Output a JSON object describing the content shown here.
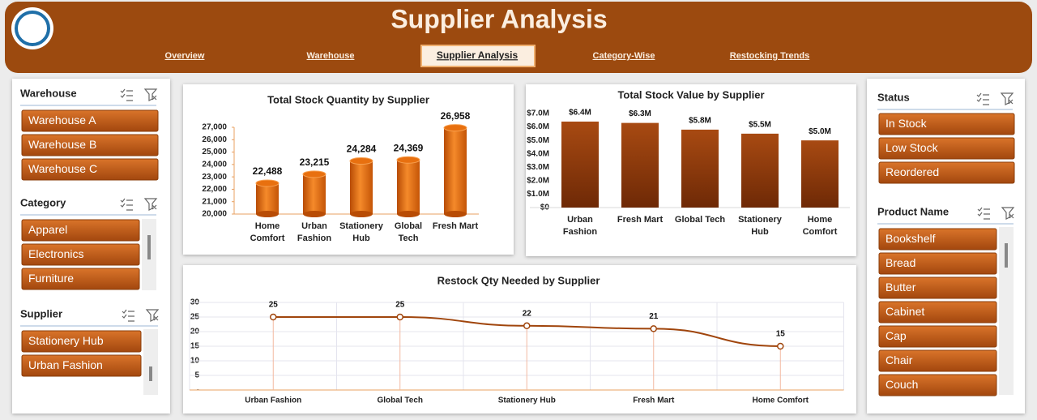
{
  "header": {
    "title": "Supplier Analysis"
  },
  "nav": {
    "items": [
      "Overview",
      "Warehouse",
      "Supplier Analysis",
      "Category-Wise",
      "Restocking Trends"
    ],
    "active": 2
  },
  "slicers": [
    {
      "title": "Warehouse",
      "items": [
        "Warehouse A",
        "Warehouse B",
        "Warehouse C"
      ]
    },
    {
      "title": "Category",
      "items": [
        "Apparel",
        "Electronics",
        "Furniture"
      ]
    },
    {
      "title": "Supplier",
      "items": [
        "Stationery Hub",
        "Urban Fashion"
      ]
    },
    {
      "title": "Status",
      "items": [
        "In Stock",
        "Low Stock",
        "Reordered"
      ]
    },
    {
      "title": "Product Name",
      "items": [
        "Bookshelf",
        "Bread",
        "Butter",
        "Cabinet",
        "Cap",
        "Chair",
        "Couch"
      ]
    }
  ],
  "chart_data": [
    {
      "type": "bar",
      "title": "Total Stock Quantity by Supplier",
      "categories": [
        "Home Comfort",
        "Urban Fashion",
        "Stationery Hub",
        "Global Tech",
        "Fresh Mart"
      ],
      "values": [
        22488,
        23215,
        24284,
        24369,
        26958
      ],
      "value_labels": [
        "22,488",
        "23,215",
        "24,284",
        "24,369",
        "26,958"
      ],
      "color": "#e8700f",
      "ylim": [
        20000,
        27000
      ],
      "yticks": [
        {
          "value": 20000,
          "label": "20,000"
        },
        {
          "value": 21000,
          "label": "21,000"
        },
        {
          "value": 22000,
          "label": "22,000"
        },
        {
          "value": 23000,
          "label": "23,000"
        },
        {
          "value": 24000,
          "label": "24,000"
        },
        {
          "value": 25000,
          "label": "25,000"
        },
        {
          "value": 26000,
          "label": "26,000"
        },
        {
          "value": 27000,
          "label": "27,000"
        }
      ],
      "grid": false
    },
    {
      "type": "bar",
      "title": "Total Stock Value by Supplier",
      "categories": [
        "Urban Fashion",
        "Fresh Mart",
        "Global Tech",
        "Stationery Hub",
        "Home Comfort"
      ],
      "values": [
        6400000,
        6300000,
        5800000,
        5500000,
        5000000
      ],
      "value_labels": [
        "$6.4M",
        "$6.3M",
        "$5.8M",
        "$5.5M",
        "$5.0M"
      ],
      "color": "#8b3a0c",
      "ylim": [
        0,
        7000000
      ],
      "yticks": [
        {
          "value": 0,
          "label": "$0"
        },
        {
          "value": 1000000,
          "label": "$1.0M"
        },
        {
          "value": 2000000,
          "label": "$2.0M"
        },
        {
          "value": 3000000,
          "label": "$3.0M"
        },
        {
          "value": 4000000,
          "label": "$4.0M"
        },
        {
          "value": 5000000,
          "label": "$5.0M"
        },
        {
          "value": 6000000,
          "label": "$6.0M"
        },
        {
          "value": 7000000,
          "label": "$7.0M"
        }
      ],
      "grid": false
    },
    {
      "type": "line",
      "title": "Restock Qty Needed by Supplier",
      "categories": [
        "Urban Fashion",
        "Global Tech",
        "Stationery Hub",
        "Fresh Mart",
        "Home Comfort"
      ],
      "values": [
        25,
        25,
        22,
        21,
        15
      ],
      "color": "#a0450c",
      "ylim": [
        0,
        30
      ],
      "yticks": [
        {
          "value": 0,
          "label": "-"
        },
        5,
        10,
        15,
        20,
        25,
        30
      ],
      "grid": true
    }
  ]
}
